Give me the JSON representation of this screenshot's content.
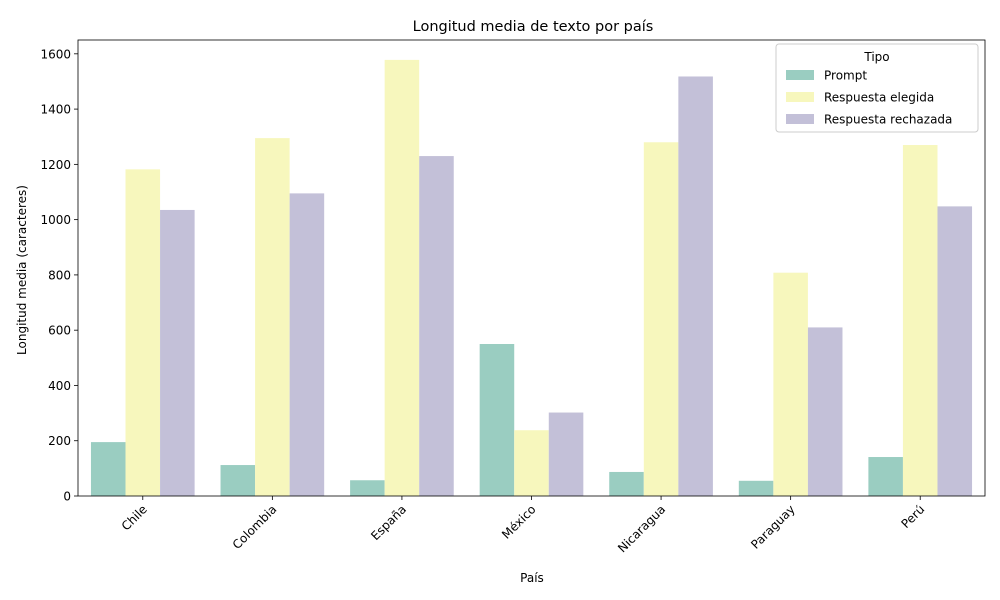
{
  "chart_data": {
    "type": "bar",
    "title": "Longitud media de texto por país",
    "xlabel": "País",
    "ylabel": "Longitud media (caracteres)",
    "ylim": [
      0,
      1650
    ],
    "yticks": [
      0,
      200,
      400,
      600,
      800,
      1000,
      1200,
      1400,
      1600
    ],
    "categories": [
      "Chile",
      "Colombia",
      "España",
      "México",
      "Nicaragua",
      "Paraguay",
      "Perú"
    ],
    "series": [
      {
        "name": "Prompt",
        "color": "#9acdc1",
        "values": [
          195,
          112,
          57,
          550,
          87,
          55,
          141
        ]
      },
      {
        "name": "Respuesta elegida",
        "color": "#f7f7bd",
        "values": [
          1182,
          1295,
          1578,
          238,
          1280,
          808,
          1270
        ]
      },
      {
        "name": "Respuesta rechazada",
        "color": "#c3c0d8",
        "values": [
          1035,
          1095,
          1230,
          302,
          1518,
          610,
          1048
        ]
      }
    ],
    "legend": {
      "title": "Tipo",
      "placement": "top-right"
    },
    "grid": false
  }
}
